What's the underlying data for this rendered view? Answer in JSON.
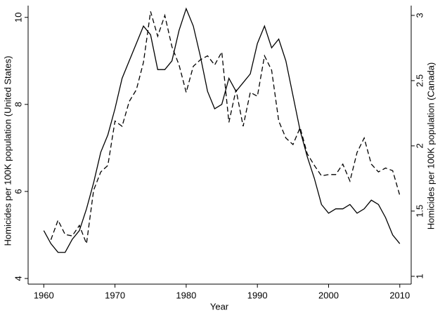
{
  "chart_data": {
    "type": "line",
    "x_label": "Year",
    "y_label": "Homicides per 100K population (United States)",
    "y2_label": "Homicides per 100K population (Canada)",
    "x": [
      1960,
      1961,
      1962,
      1963,
      1964,
      1965,
      1966,
      1967,
      1968,
      1969,
      1970,
      1971,
      1972,
      1973,
      1974,
      1975,
      1976,
      1977,
      1978,
      1979,
      1980,
      1981,
      1982,
      1983,
      1984,
      1985,
      1986,
      1987,
      1988,
      1989,
      1990,
      1991,
      1992,
      1993,
      1994,
      1995,
      1996,
      1997,
      1998,
      1999,
      2000,
      2001,
      2002,
      2003,
      2004,
      2005,
      2006,
      2007,
      2008,
      2009,
      2010
    ],
    "series": [
      {
        "color": "#000000",
        "line_style": "solid",
        "values": [
          5.1,
          4.8,
          4.6,
          4.6,
          4.9,
          5.1,
          5.6,
          6.2,
          6.9,
          7.3,
          7.9,
          8.6,
          9.0,
          9.4,
          9.8,
          9.6,
          8.8,
          8.8,
          9.0,
          9.7,
          10.2,
          9.8,
          9.1,
          8.3,
          7.9,
          8.0,
          8.6,
          8.3,
          8.5,
          8.7,
          9.4,
          9.8,
          9.3,
          9.5,
          9.0,
          8.2,
          7.4,
          6.8,
          6.3,
          5.7,
          5.5,
          5.6,
          5.6,
          5.7,
          5.5,
          5.6,
          5.8,
          5.7,
          5.4,
          5.0,
          4.8
        ]
      },
      {
        "color": "#000000",
        "line_style": "dashed",
        "axis": "y2",
        "values": [
          null,
          1.28,
          1.43,
          1.32,
          1.31,
          1.39,
          1.25,
          1.66,
          1.8,
          1.85,
          2.19,
          2.15,
          2.34,
          2.43,
          2.64,
          3.03,
          2.84,
          3.0,
          2.76,
          2.62,
          2.41,
          2.61,
          2.66,
          2.69,
          2.62,
          2.72,
          2.18,
          2.43,
          2.15,
          2.41,
          2.38,
          2.69,
          2.58,
          2.19,
          2.06,
          2.01,
          2.14,
          1.94,
          1.85,
          1.77,
          1.78,
          1.78,
          1.86,
          1.73,
          1.95,
          2.06,
          1.86,
          1.8,
          1.83,
          1.81,
          1.62
        ]
      }
    ],
    "xlim": [
      1957.8,
      2011.6
    ],
    "xticks": [
      1960,
      1970,
      1980,
      1990,
      2000,
      2010
    ],
    "ylim": [
      3.87,
      10.27
    ],
    "yticks": [
      4,
      6,
      8,
      10
    ],
    "y2lim": [
      0.94,
      3.075
    ],
    "y2ticks": [
      1,
      1.5,
      2,
      2.5,
      3
    ],
    "grid": false
  }
}
